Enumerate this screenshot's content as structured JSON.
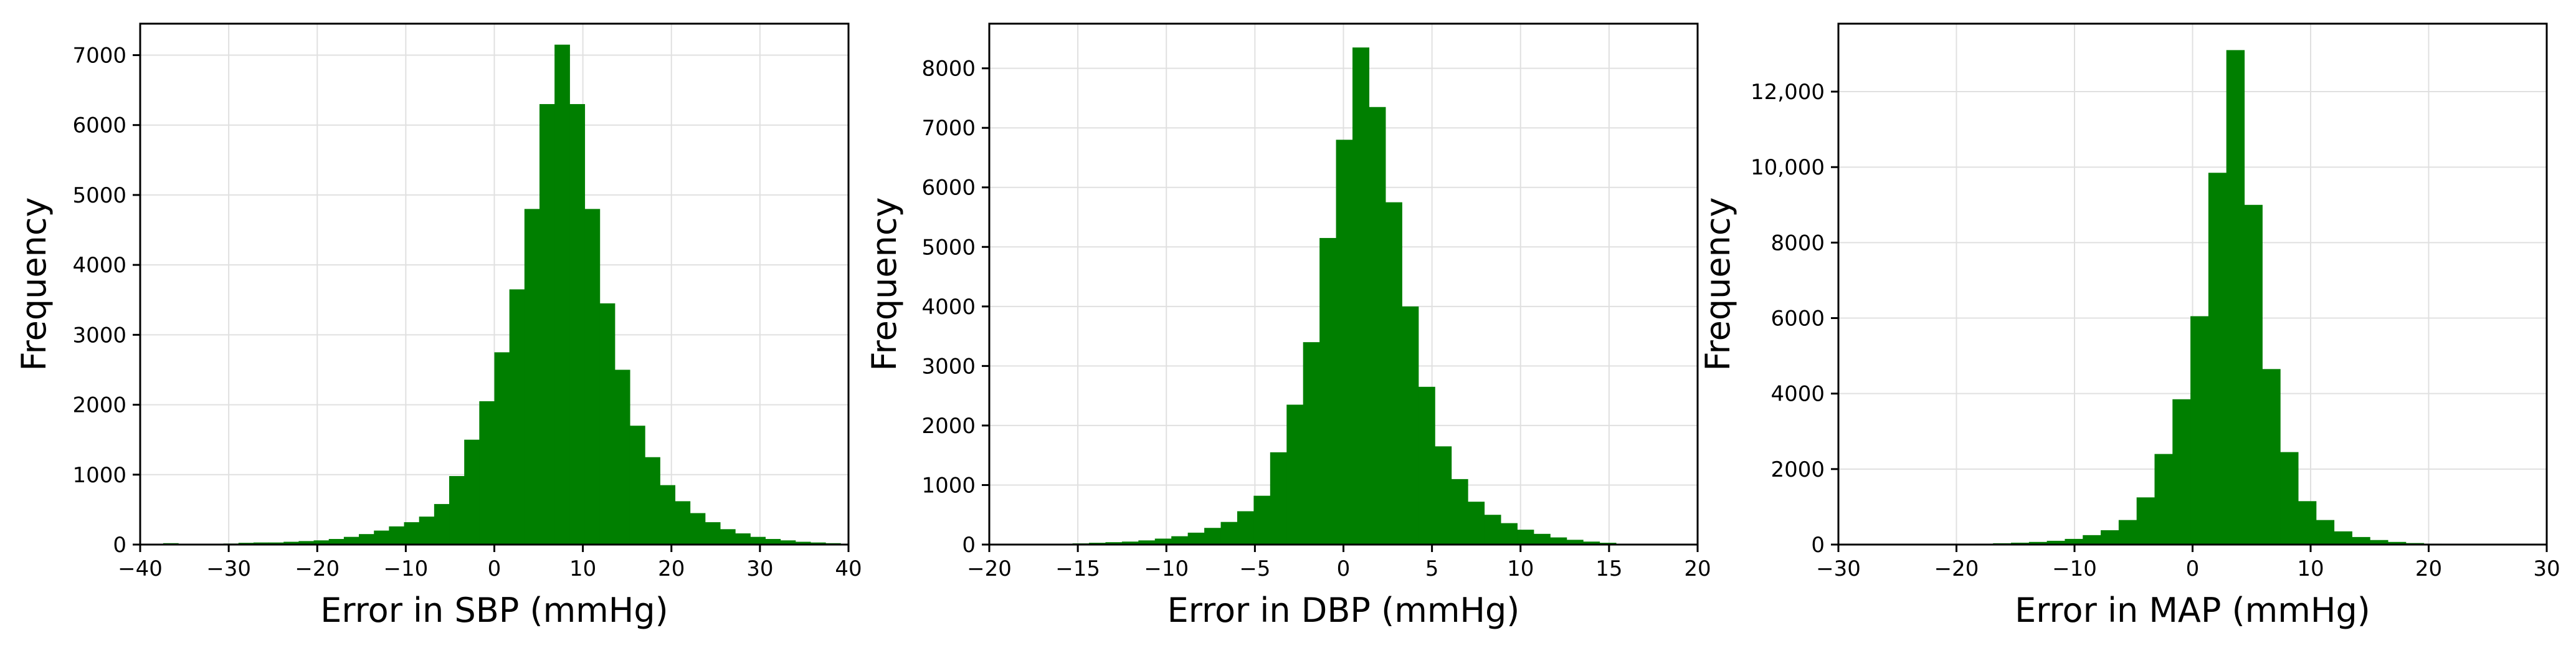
{
  "colors": {
    "bar": "#007f00",
    "grid": "#e0e0e0",
    "axis": "#000000",
    "background": "#ffffff"
  },
  "chart_data": [
    {
      "type": "bar",
      "xlabel": "Error in SBP (mmHg)",
      "ylabel": "Frequency",
      "xlim": [
        -40,
        40
      ],
      "ylim": [
        0,
        7450
      ],
      "xticks": [
        -40,
        -30,
        -20,
        -10,
        0,
        10,
        20,
        30,
        40
      ],
      "xtick_labels": [
        "−40",
        "−30",
        "−20",
        "−10",
        "0",
        "10",
        "20",
        "30",
        "40"
      ],
      "yticks": [
        0,
        1000,
        2000,
        3000,
        4000,
        5000,
        6000,
        7000
      ],
      "ytick_labels": [
        "0",
        "1000",
        "2000",
        "3000",
        "4000",
        "5000",
        "6000",
        "7000"
      ],
      "grid": true,
      "bin_width": 1.7,
      "bin_start": -37.4,
      "values": [
        20,
        5,
        10,
        5,
        15,
        25,
        30,
        30,
        40,
        50,
        60,
        80,
        110,
        150,
        200,
        260,
        320,
        400,
        580,
        980,
        1500,
        2050,
        2750,
        3650,
        4800,
        6300,
        7150,
        6300,
        4800,
        3450,
        2500,
        1700,
        1250,
        850,
        620,
        450,
        320,
        220,
        160,
        110,
        80,
        60,
        40,
        30,
        20
      ]
    },
    {
      "type": "bar",
      "xlabel": "Error in DBP (mmHg)",
      "ylabel": "Frequency",
      "xlim": [
        -20,
        20
      ],
      "ylim": [
        0,
        8750
      ],
      "xticks": [
        -20,
        -15,
        -10,
        -5,
        0,
        5,
        10,
        15,
        20
      ],
      "xtick_labels": [
        "−20",
        "−15",
        "−10",
        "−5",
        "0",
        "5",
        "10",
        "15",
        "20"
      ],
      "yticks": [
        0,
        1000,
        2000,
        3000,
        4000,
        5000,
        6000,
        7000,
        8000
      ],
      "ytick_labels": [
        "0",
        "1000",
        "2000",
        "3000",
        "4000",
        "5000",
        "6000",
        "7000",
        "8000"
      ],
      "grid": true,
      "bin_width": 0.93,
      "bin_start": -15.3,
      "values": [
        20,
        30,
        40,
        50,
        70,
        100,
        140,
        200,
        280,
        380,
        560,
        820,
        1550,
        2350,
        3400,
        5150,
        6800,
        8350,
        7350,
        5750,
        4000,
        2650,
        1650,
        1100,
        720,
        500,
        360,
        250,
        180,
        120,
        80,
        50,
        30
      ]
    },
    {
      "type": "bar",
      "xlabel": "Error in MAP (mmHg)",
      "ylabel": "Frequency",
      "xlim": [
        -30,
        30
      ],
      "ylim": [
        0,
        13800
      ],
      "xticks": [
        -30,
        -20,
        -10,
        0,
        10,
        20,
        30
      ],
      "xtick_labels": [
        "−30",
        "−20",
        "−10",
        "0",
        "10",
        "20",
        "30"
      ],
      "yticks": [
        0,
        2000,
        4000,
        6000,
        8000,
        10000,
        12000
      ],
      "ytick_labels": [
        "0",
        "2000",
        "4000",
        "6000",
        "8000",
        "10,000",
        "12,000"
      ],
      "grid": true,
      "bin_width": 1.52,
      "bin_start": -19.94,
      "values": [
        20,
        25,
        35,
        50,
        70,
        100,
        150,
        250,
        380,
        650,
        1250,
        2400,
        3850,
        6050,
        9850,
        13100,
        9000,
        4650,
        2450,
        1150,
        650,
        350,
        200,
        120,
        70,
        40,
        25,
        20
      ]
    }
  ]
}
